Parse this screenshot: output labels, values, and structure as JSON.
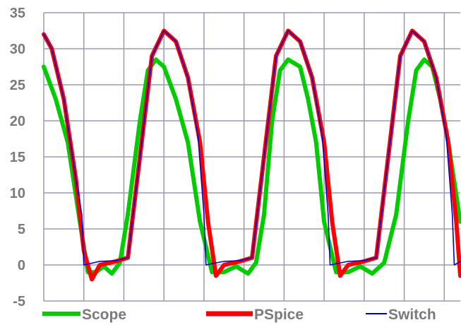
{
  "chart_data": {
    "type": "line",
    "title": "",
    "xlabel": "",
    "ylabel": "",
    "ylim": [
      -5,
      35
    ],
    "yticks": [
      "35",
      "30",
      "25",
      "20",
      "15",
      "10",
      "5",
      "0",
      "-5"
    ],
    "ytick_values": [
      35,
      30,
      25,
      20,
      15,
      10,
      5,
      0,
      -5
    ],
    "x_gridlines": 10,
    "xlim": [
      0,
      10.4
    ],
    "grid": true,
    "legend_position": "bottom",
    "series": [
      {
        "name": "Scope",
        "color": "#00cc00",
        "x": [
          0,
          0.3,
          0.6,
          0.9,
          1.1,
          1.3,
          1.5,
          1.7,
          1.9,
          2.1,
          2.4,
          2.6,
          2.8,
          3.0,
          3.3,
          3.6,
          3.9,
          4.2,
          4.5,
          4.8,
          5.1,
          5.3,
          5.5,
          5.7,
          5.9,
          6.1,
          6.4,
          6.6,
          6.8,
          7.0,
          7.3,
          7.6,
          7.9,
          8.2,
          8.5,
          8.8,
          9.1,
          9.3,
          9.5,
          9.7,
          9.9,
          10.1,
          10.4
        ],
        "values": [
          27.5,
          23,
          17,
          6,
          -1,
          -1,
          -0.2,
          -1.2,
          0.3,
          7,
          20,
          27,
          28.5,
          27.5,
          23,
          17,
          6,
          -1,
          -1,
          -0.2,
          -1.2,
          0.3,
          7,
          20,
          27,
          28.5,
          27.5,
          23,
          17,
          6,
          -1,
          -1,
          -0.2,
          -1.2,
          0.3,
          7,
          20,
          27,
          28.5,
          27.5,
          23,
          17,
          6
        ]
      },
      {
        "name": "PSpice",
        "color": "#ff0000",
        "x": [
          0,
          0.2,
          0.5,
          0.8,
          1.0,
          1.2,
          1.4,
          1.8,
          2.1,
          2.4,
          2.7,
          3.0,
          3.3,
          3.6,
          3.9,
          4.1,
          4.3,
          4.5,
          4.9,
          5.2,
          5.5,
          5.8,
          6.1,
          6.4,
          6.7,
          7.0,
          7.2,
          7.4,
          7.6,
          8.0,
          8.3,
          8.6,
          8.9,
          9.2,
          9.5,
          9.8,
          10.1,
          10.3,
          10.4
        ],
        "values": [
          32,
          30,
          23,
          12,
          2,
          -2,
          0,
          0.5,
          1,
          15,
          29,
          32.5,
          31,
          26,
          17,
          6,
          -1.5,
          0,
          0.5,
          1,
          15,
          29,
          32.5,
          31,
          26,
          17,
          6,
          -1.5,
          0,
          0.5,
          1,
          15,
          29,
          32.5,
          31,
          26,
          17,
          6,
          -1.5
        ]
      },
      {
        "name": "Switch",
        "color": "#0000cc",
        "x": [
          0,
          0.2,
          0.5,
          0.8,
          0.95,
          1.0,
          1.4,
          1.8,
          2.1,
          2.4,
          2.7,
          3.0,
          3.3,
          3.6,
          3.85,
          4.0,
          4.05,
          4.5,
          4.9,
          5.2,
          5.5,
          5.8,
          6.1,
          6.4,
          6.7,
          6.95,
          7.1,
          7.15,
          7.6,
          8.0,
          8.3,
          8.6,
          8.9,
          9.2,
          9.5,
          9.8,
          10.05,
          10.2,
          10.25,
          10.4
        ],
        "values": [
          32,
          30,
          23,
          12,
          7,
          0,
          0.5,
          0.6,
          1,
          15,
          29,
          32.5,
          31,
          26,
          18,
          7,
          0,
          0.5,
          0.6,
          1,
          15,
          29,
          32.5,
          31,
          26,
          18,
          7,
          0,
          0.5,
          0.6,
          1,
          15,
          29,
          32.5,
          31,
          26,
          18,
          7,
          0,
          0.5
        ]
      }
    ]
  }
}
